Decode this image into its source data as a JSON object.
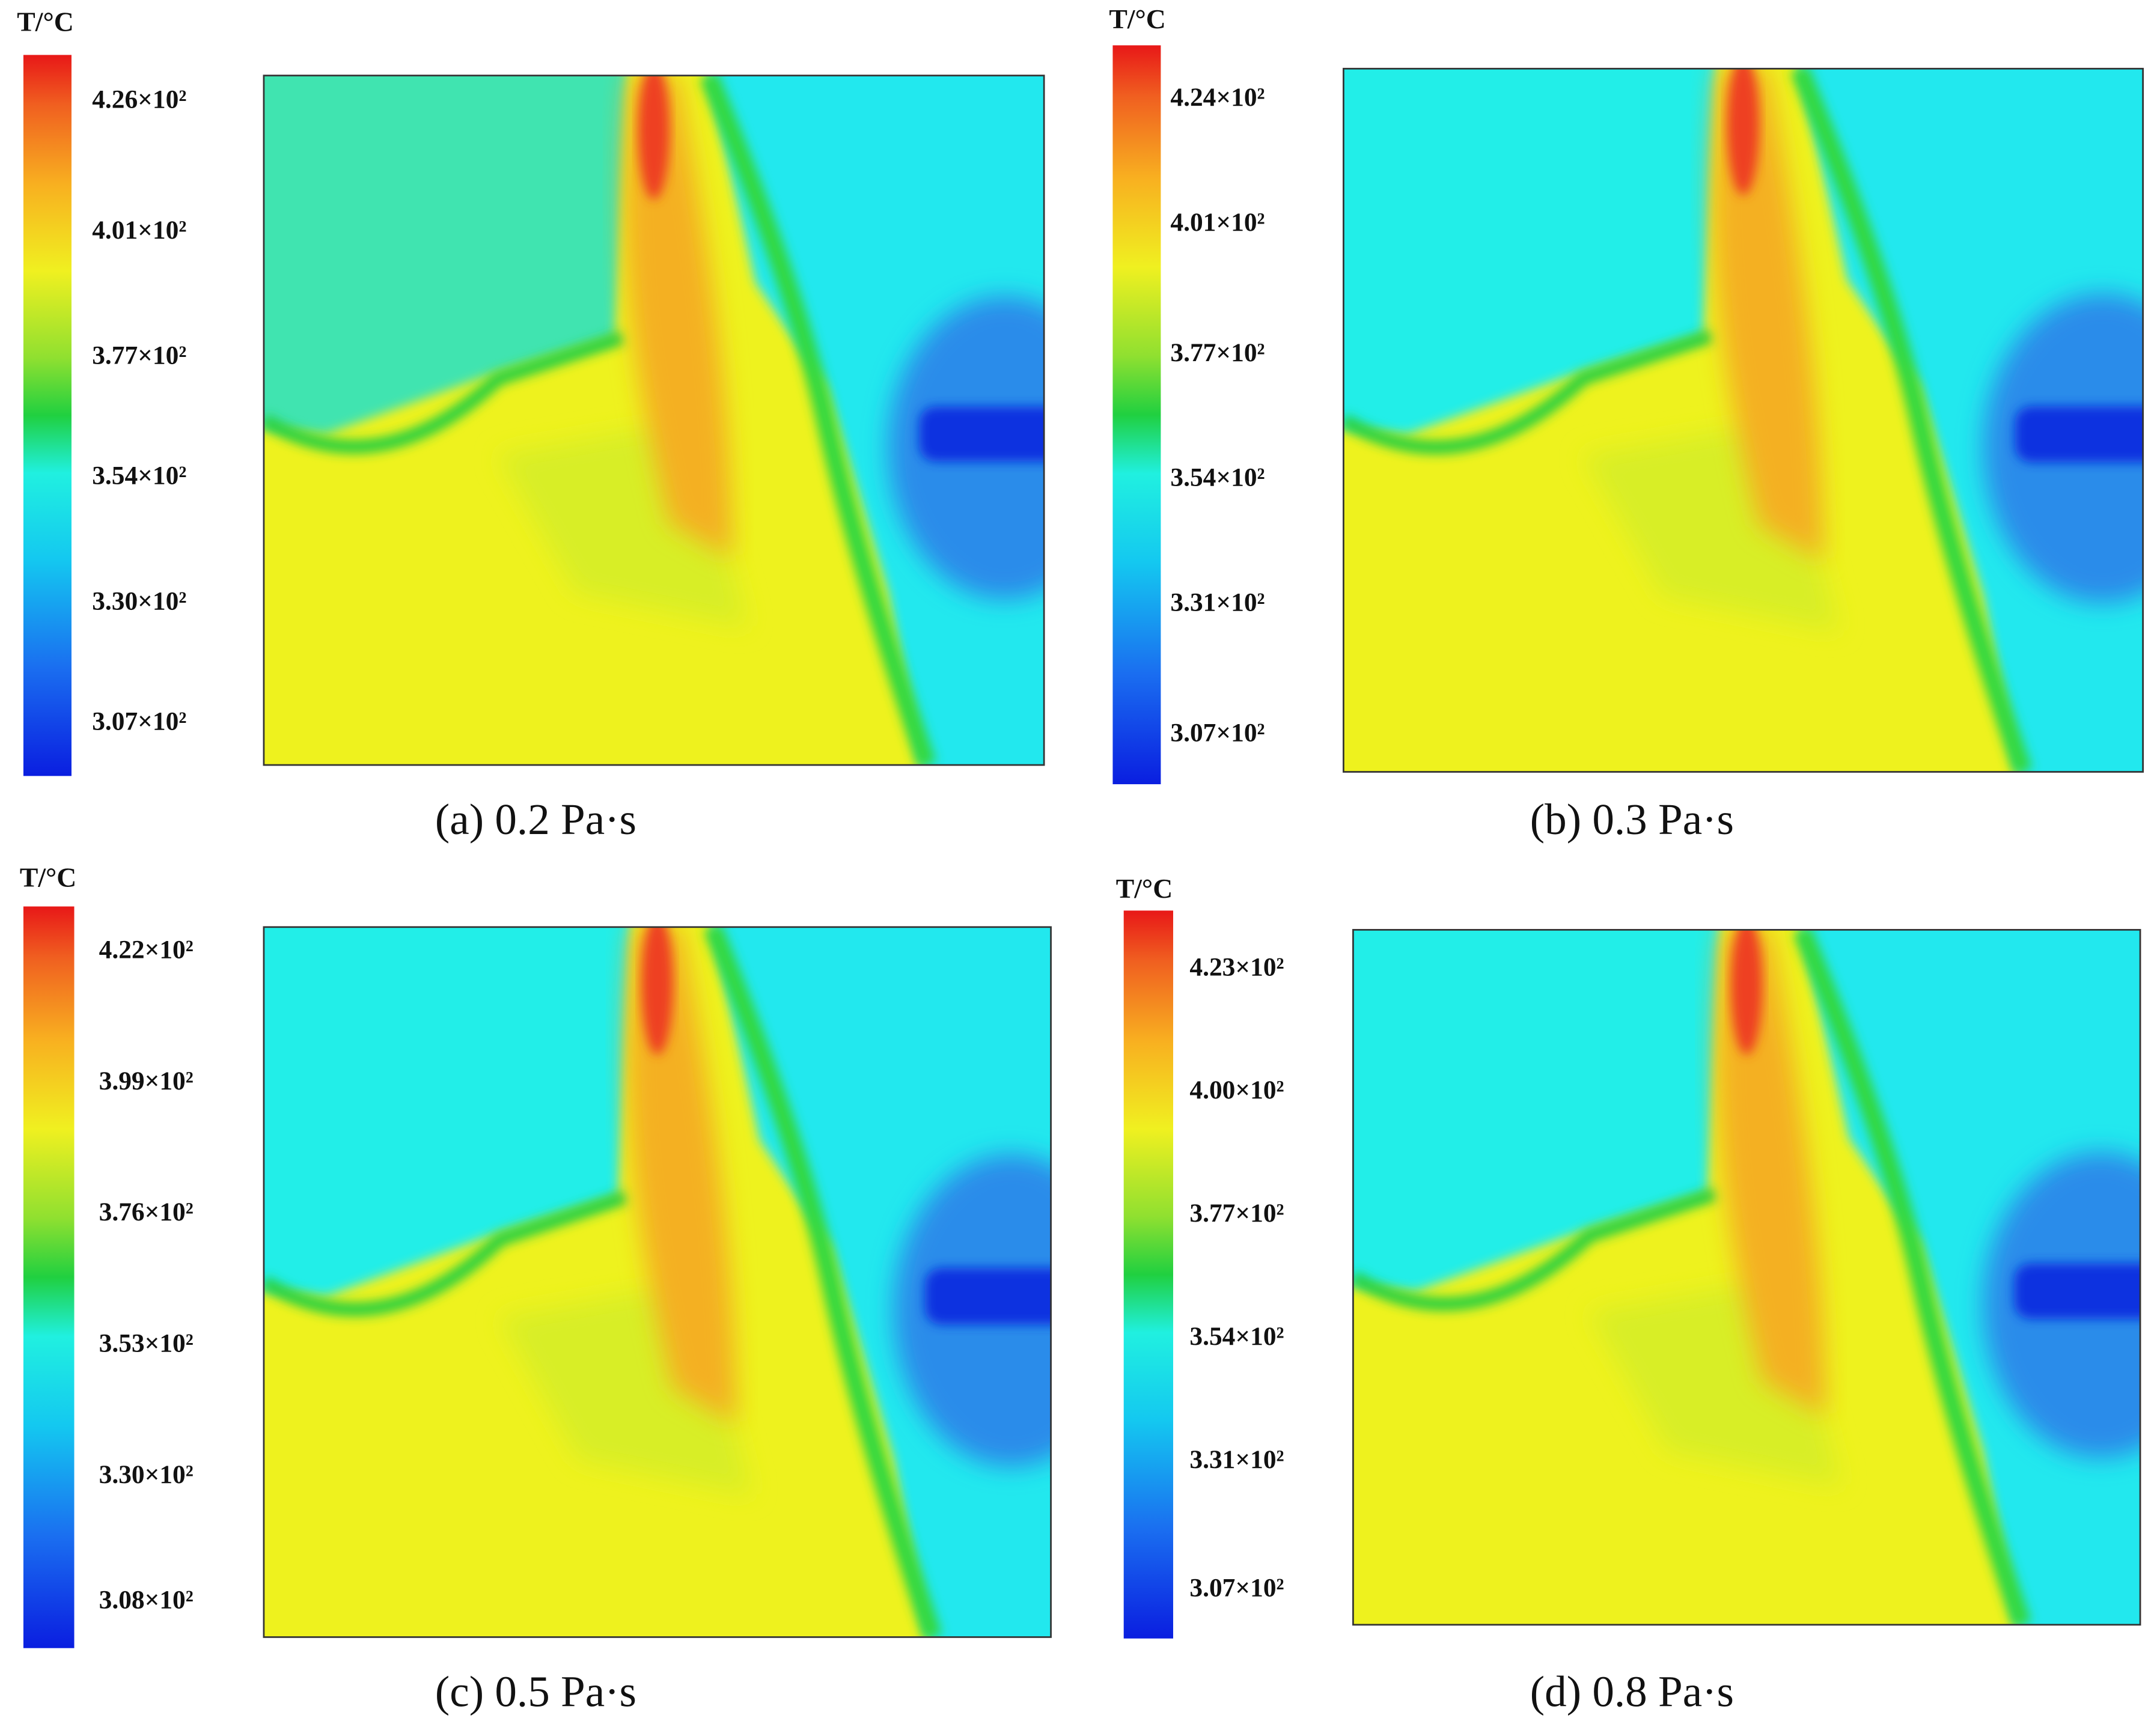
{
  "chart_data": [
    {
      "type": "contour",
      "caption": "(a) 0.2 Pa·s",
      "colorbar_label": "T/°C",
      "ylim": [
        297,
        435
      ],
      "yticks": [
        {
          "value": 426,
          "label": "4.26×10²"
        },
        {
          "value": 401,
          "label": "4.01×10²"
        },
        {
          "value": 377,
          "label": "3.77×10²"
        },
        {
          "value": 354,
          "label": "3.54×10²"
        },
        {
          "value": 330,
          "label": "3.30×10²"
        },
        {
          "value": 307,
          "label": "3.07×10²"
        }
      ]
    },
    {
      "type": "contour",
      "caption": "(b) 0.3 Pa·s",
      "colorbar_label": "T/°C",
      "ylim": [
        298,
        434
      ],
      "yticks": [
        {
          "value": 424,
          "label": "4.24×10²"
        },
        {
          "value": 401,
          "label": "4.01×10²"
        },
        {
          "value": 377,
          "label": "3.77×10²"
        },
        {
          "value": 354,
          "label": "3.54×10²"
        },
        {
          "value": 331,
          "label": "3.31×10²"
        },
        {
          "value": 307,
          "label": "3.07×10²"
        }
      ]
    },
    {
      "type": "contour",
      "caption": "(c) 0.5 Pa·s",
      "colorbar_label": "T/°C",
      "ylim": [
        300,
        430
      ],
      "yticks": [
        {
          "value": 422,
          "label": "4.22×10²"
        },
        {
          "value": 399,
          "label": "3.99×10²"
        },
        {
          "value": 376,
          "label": "3.76×10²"
        },
        {
          "value": 353,
          "label": "3.53×10²"
        },
        {
          "value": 330,
          "label": "3.30×10²"
        },
        {
          "value": 308,
          "label": "3.08×10²"
        }
      ]
    },
    {
      "type": "contour",
      "caption": "(d) 0.8 Pa·s",
      "colorbar_label": "T/°C",
      "ylim": [
        298,
        434
      ],
      "yticks": [
        {
          "value": 423,
          "label": "4.23×10²"
        },
        {
          "value": 400,
          "label": "4.00×10²"
        },
        {
          "value": 377,
          "label": "3.77×10²"
        },
        {
          "value": 354,
          "label": "3.54×10²"
        },
        {
          "value": 331,
          "label": "3.31×10²"
        },
        {
          "value": 307,
          "label": "3.07×10²"
        }
      ]
    }
  ]
}
